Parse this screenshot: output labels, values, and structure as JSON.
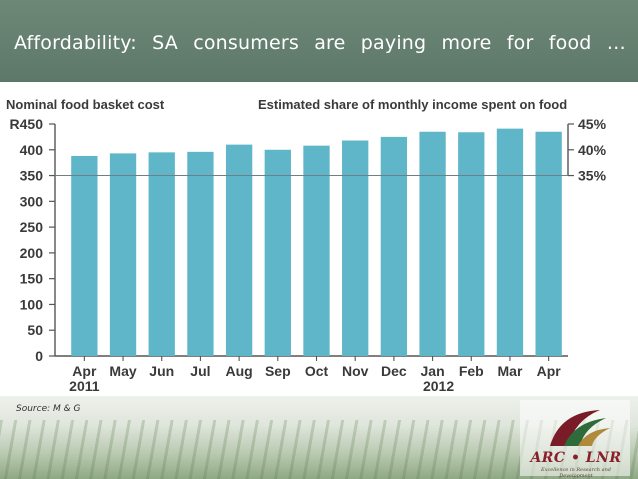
{
  "slide": {
    "title": "Affordability:  SA  consumers  are  paying  more  for  food  …",
    "source": "Source:  M & G"
  },
  "logo": {
    "text": "ARC • LNR",
    "tagline": "Excellence in Research and Development"
  },
  "colors": {
    "title_bar": "#627d6d",
    "bar_fill": "#5fb6c8",
    "axis": "#555555"
  },
  "chart_data": {
    "type": "bar",
    "left_title": "Nominal food basket cost",
    "right_title": "Estimated share of monthly income spent on food",
    "categories": [
      "Apr",
      "May",
      "Jun",
      "Jul",
      "Aug",
      "Sep",
      "Oct",
      "Nov",
      "Dec",
      "Jan",
      "Feb",
      "Mar",
      "Apr"
    ],
    "year_labels": [
      {
        "category_index": 0,
        "label": "2011"
      },
      {
        "category_index": 9,
        "label": "2012"
      }
    ],
    "values": [
      388,
      393,
      395,
      396,
      410,
      400,
      408,
      418,
      425,
      435,
      434,
      441,
      435
    ],
    "y_left": {
      "ylim": [
        0,
        450
      ],
      "ticks": [
        0,
        50,
        100,
        150,
        200,
        250,
        300,
        350,
        400,
        450
      ],
      "tick_labels": [
        "0",
        "50",
        "100",
        "150",
        "200",
        "250",
        "300",
        "350",
        "400",
        "R450"
      ]
    },
    "y_right": {
      "tick_values_on_left_scale": [
        350,
        400,
        450
      ],
      "tick_labels": [
        "35%",
        "40%",
        "45%"
      ]
    },
    "reference_line": 350,
    "grid": false
  }
}
